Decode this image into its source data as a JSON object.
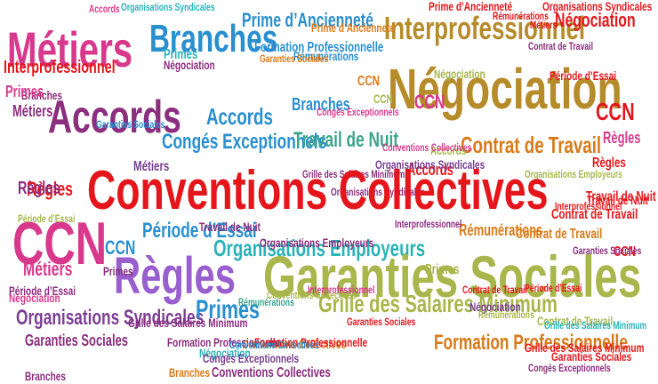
{
  "main_phrase": {
    "text": "Conventions Collectives",
    "color": "#e4161b"
  },
  "words": [
    {
      "text": "Métiers",
      "color": "#d8398c"
    },
    {
      "text": "Branches",
      "color": "#2a8fcf"
    },
    {
      "text": "Interprofessionnel",
      "color": "#b68b2a"
    },
    {
      "text": "Négociation",
      "color": "#b68b2a"
    },
    {
      "text": "Accords",
      "color": "#8b2e7e"
    },
    {
      "text": "Congés Exceptionnels",
      "color": "#2a8fcf"
    },
    {
      "text": "Contrat de Travail",
      "color": "#d97a18"
    },
    {
      "text": "CCN",
      "color": "#d8398c"
    },
    {
      "text": "Règles",
      "color": "#9a5fcf"
    },
    {
      "text": "Période d’Essai",
      "color": "#2a8fcf"
    },
    {
      "text": "Organisations Employeurs",
      "color": "#2ab3b7"
    },
    {
      "text": "Garanties Sociales",
      "color": "#a7b74b"
    },
    {
      "text": "Grille des Salaires Minimum",
      "color": "#a7b74b"
    },
    {
      "text": "Formation Professionnelle",
      "color": "#d97a18"
    },
    {
      "text": "Organisations Syndicales",
      "color": "#7a3e92"
    },
    {
      "text": "Primes",
      "color": "#2a8fcf"
    },
    {
      "text": "Prime d’Ancienneté",
      "color": "#2a8fcf"
    },
    {
      "text": "Travail de Nuit",
      "color": "#3aa58b"
    },
    {
      "text": "Rémunérations",
      "color": "#d97a18"
    },
    {
      "text": "Garanties Sociales",
      "color": "#8b2e7e"
    },
    {
      "text": "Négociation",
      "color": "#e4161b"
    },
    {
      "text": "CCN",
      "color": "#e4161b"
    },
    {
      "text": "Règles",
      "color": "#e4161b"
    },
    {
      "text": "Période d’Essai",
      "color": "#e4161b"
    },
    {
      "text": "Travail de Nuit",
      "color": "#e4161b"
    },
    {
      "text": "Contrat de Travail",
      "color": "#e4161b"
    },
    {
      "text": "Organisations Syndicales",
      "color": "#e4161b"
    },
    {
      "text": "Interprofessionnel",
      "color": "#e4161b"
    },
    {
      "text": "Rémunérations",
      "color": "#e4161b"
    },
    {
      "text": "Grille des Salaires Minimum",
      "color": "#e4161b"
    },
    {
      "text": "Garanties Sociales",
      "color": "#e4161b"
    },
    {
      "text": "Conventions Collectives",
      "color": "#d97a18"
    },
    {
      "text": "Conventions Collectives",
      "color": "#8b2e7e"
    },
    {
      "text": "Accords",
      "color": "#2a8fcf"
    },
    {
      "text": "Accords",
      "color": "#e4161b"
    },
    {
      "text": "Accords",
      "color": "#a7b74b"
    },
    {
      "text": "Accords",
      "color": "#d8398c"
    },
    {
      "text": "Branches",
      "color": "#2a8fcf"
    },
    {
      "text": "Branches",
      "color": "#8b2e7e"
    },
    {
      "text": "Branches",
      "color": "#d97a18"
    },
    {
      "text": "Primes",
      "color": "#d8398c"
    },
    {
      "text": "Primes",
      "color": "#8b2e7e"
    },
    {
      "text": "Primes",
      "color": "#a7b74b"
    },
    {
      "text": "Primes",
      "color": "#2ab3b7"
    },
    {
      "text": "Métiers",
      "color": "#8b2e7e"
    },
    {
      "text": "Métiers",
      "color": "#d8398c"
    },
    {
      "text": "Métiers",
      "color": "#7a3e92"
    },
    {
      "text": "Règles",
      "color": "#8b2e7e"
    },
    {
      "text": "Règles",
      "color": "#e4161b"
    },
    {
      "text": "Règles",
      "color": "#d8398c"
    },
    {
      "text": "CCN",
      "color": "#2a8fcf"
    },
    {
      "text": "CCN",
      "color": "#d97a18"
    },
    {
      "text": "CCN",
      "color": "#e4161b"
    },
    {
      "text": "CCN",
      "color": "#d8398c"
    },
    {
      "text": "CCN",
      "color": "#a7b74b"
    },
    {
      "text": "Négociation",
      "color": "#8b2e7e"
    },
    {
      "text": "Négociation",
      "color": "#2ab3b7"
    },
    {
      "text": "Négociation",
      "color": "#a7b74b"
    },
    {
      "text": "Négociation",
      "color": "#7a3e92"
    },
    {
      "text": "Négociation",
      "color": "#d8398c"
    },
    {
      "text": "Rémunérations",
      "color": "#2a8fcf"
    },
    {
      "text": "Rémunérations",
      "color": "#3aa58b"
    },
    {
      "text": "Rémunérations",
      "color": "#a7b74b"
    },
    {
      "text": "Période d’Essai",
      "color": "#8b2e7e"
    },
    {
      "text": "Période d’Essai",
      "color": "#a7b74b"
    },
    {
      "text": "Période d’Essai",
      "color": "#e4161b"
    },
    {
      "text": "Travail de Nuit",
      "color": "#8b2e7e"
    },
    {
      "text": "Travail de Nuit",
      "color": "#e4161b"
    },
    {
      "text": "Contrat de Travail",
      "color": "#a7b74b"
    },
    {
      "text": "Contrat de Travail",
      "color": "#8b2e7e"
    },
    {
      "text": "Contrat de Travail",
      "color": "#d97a18"
    },
    {
      "text": "Formation Professionnelle",
      "color": "#2a8fcf"
    },
    {
      "text": "Formation Professionnelle",
      "color": "#8b2e7e"
    },
    {
      "text": "Formation Professionnelle",
      "color": "#e4161b"
    },
    {
      "text": "Organisations Employeurs",
      "color": "#8b2e7e"
    },
    {
      "text": "Organisations Employeurs",
      "color": "#a7b74b"
    },
    {
      "text": "Organisations Syndicales",
      "color": "#8b2e7e"
    },
    {
      "text": "Organisations Syndicales",
      "color": "#2ab3b7"
    },
    {
      "text": "Organisations Syndicales",
      "color": "#7a3e92"
    },
    {
      "text": "Grille des Salaires Minimum",
      "color": "#8b2e7e"
    },
    {
      "text": "Grille des Salaires Minimum",
      "color": "#2ab3b7"
    },
    {
      "text": "Grille des Salaires Minimum",
      "color": "#8b2e7e"
    },
    {
      "text": "Congés Exceptionnels",
      "color": "#8b2e7e"
    },
    {
      "text": "Congés Exceptionnels",
      "color": "#d8398c"
    },
    {
      "text": "Congés Exceptionnels",
      "color": "#7a3e92"
    },
    {
      "text": "Prime d’Ancienneté",
      "color": "#d97a18"
    },
    {
      "text": "Prime d’Ancienneté",
      "color": "#e4161b"
    },
    {
      "text": "Interprofessionnel",
      "color": "#8b2e7e"
    },
    {
      "text": "Interprofessionnel",
      "color": "#d8398c"
    },
    {
      "text": "Interprofessionnel",
      "color": "#e4161b"
    },
    {
      "text": "Garanties Sociales",
      "color": "#2a8fcf"
    },
    {
      "text": "Garanties Sociales",
      "color": "#d97a18"
    },
    {
      "text": "Garanties Sociales",
      "color": "#8b2e7e"
    },
    {
      "text": "Garanties Sociales",
      "color": "#e4161b"
    },
    {
      "text": "Conventions Collectives",
      "color": "#2a8fcf"
    },
    {
      "text": "Conventions Collectives",
      "color": "#a7b74b"
    },
    {
      "text": "Conventions Collectives",
      "color": "#d8398c"
    },
    {
      "text": "Branches",
      "color": "#8b2e7e"
    },
    {
      "text": "Contrat de Travail",
      "color": "#e4161b"
    },
    {
      "text": "Métiers",
      "color": "#e4161b"
    }
  ]
}
